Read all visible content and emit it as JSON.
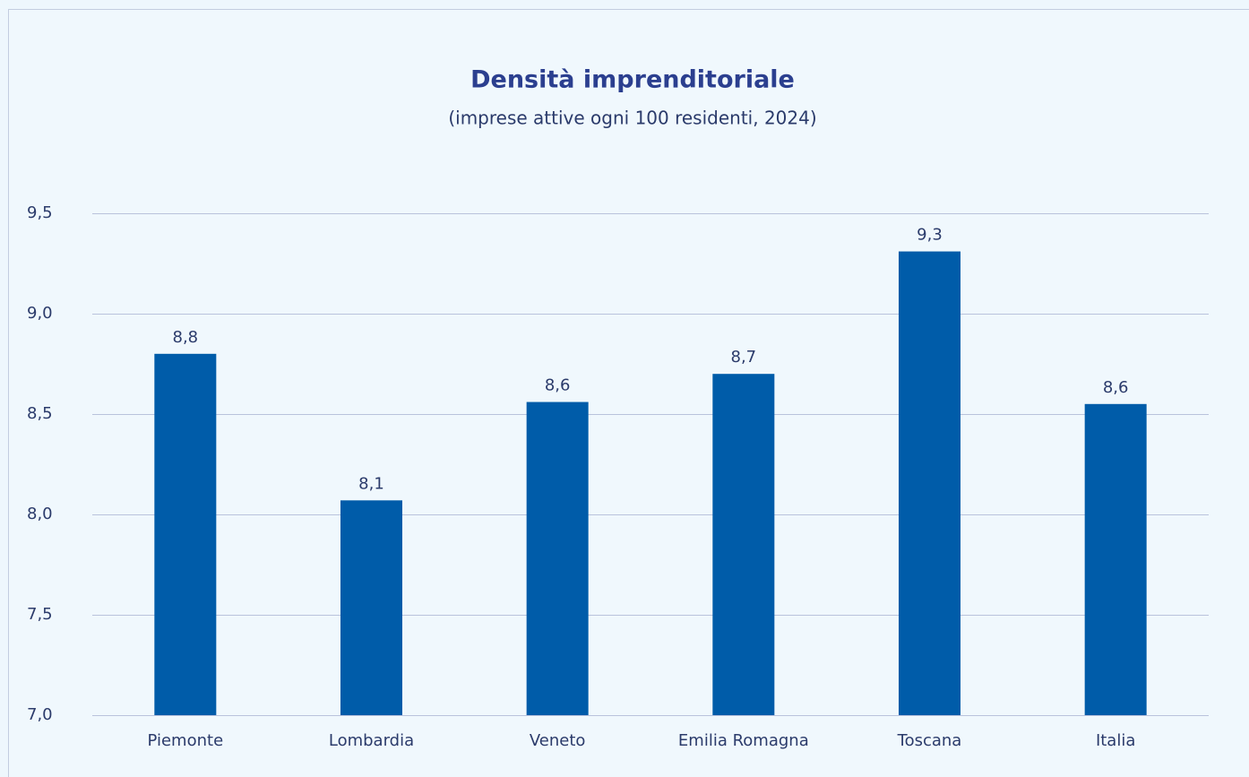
{
  "chart_data": {
    "type": "bar",
    "title": "Densità imprenditoriale",
    "subtitle": "(imprese attive ogni 100 residenti, 2024)",
    "categories": [
      "Piemonte",
      "Lombardia",
      "Veneto",
      "Emilia Romagna",
      "Toscana",
      "Italia"
    ],
    "values": [
      8.8,
      8.07,
      8.56,
      8.7,
      9.31,
      8.55
    ],
    "value_labels": [
      "8,8",
      "8,1",
      "8,6",
      "8,7",
      "9,3",
      "8,6"
    ],
    "color": "#005ca9",
    "ylim": [
      7,
      9.5
    ],
    "yticks": [
      {
        "value": 7,
        "label": "7,0"
      },
      {
        "value": 7.5,
        "label": "7,5"
      },
      {
        "value": 8,
        "label": "8,0"
      },
      {
        "value": 8.5,
        "label": "8,5"
      },
      {
        "value": 9,
        "label": "9,0"
      },
      {
        "value": 9.5,
        "label": "9,5"
      }
    ],
    "grid": true
  }
}
